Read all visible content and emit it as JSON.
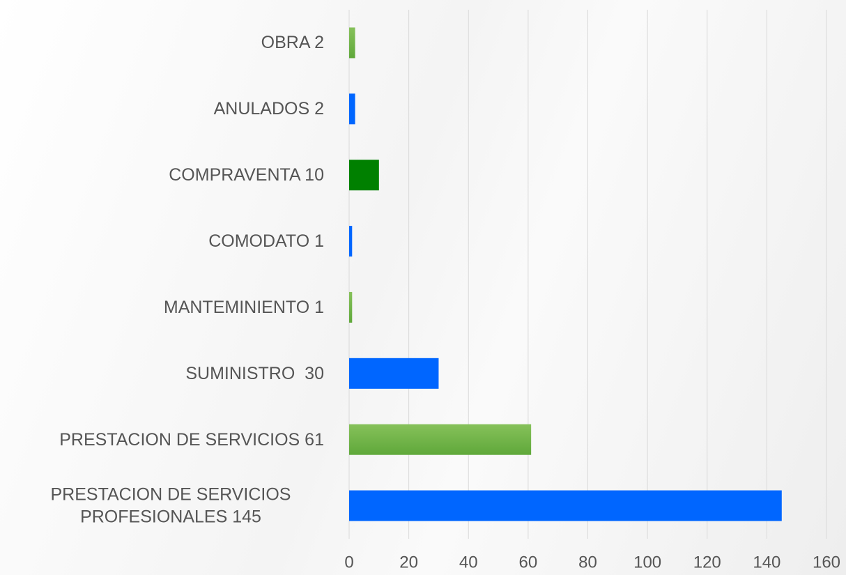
{
  "chart_data": {
    "type": "bar",
    "orientation": "horizontal",
    "categories": [
      "OBRA 2",
      "ANULADOS 2",
      "COMPRAVENTA 10",
      "COMODATO 1",
      "MANTEMINIENTO 1",
      "SUMINISTRO  30",
      "PRESTACION DE SERVICIOS 61",
      "PRESTACION DE SERVICIOS PROFESIONALES 145"
    ],
    "values": [
      2,
      2,
      10,
      1,
      1,
      30,
      61,
      145
    ],
    "colors": [
      "#70ad47",
      "#0066ff",
      "#008000",
      "#0066ff",
      "#70ad47",
      "#0066ff",
      "#70ad47",
      "#0066ff"
    ],
    "xlim": [
      0,
      160
    ],
    "xticks": [
      0,
      20,
      40,
      60,
      80,
      100,
      120,
      140,
      160
    ],
    "grid": true
  }
}
